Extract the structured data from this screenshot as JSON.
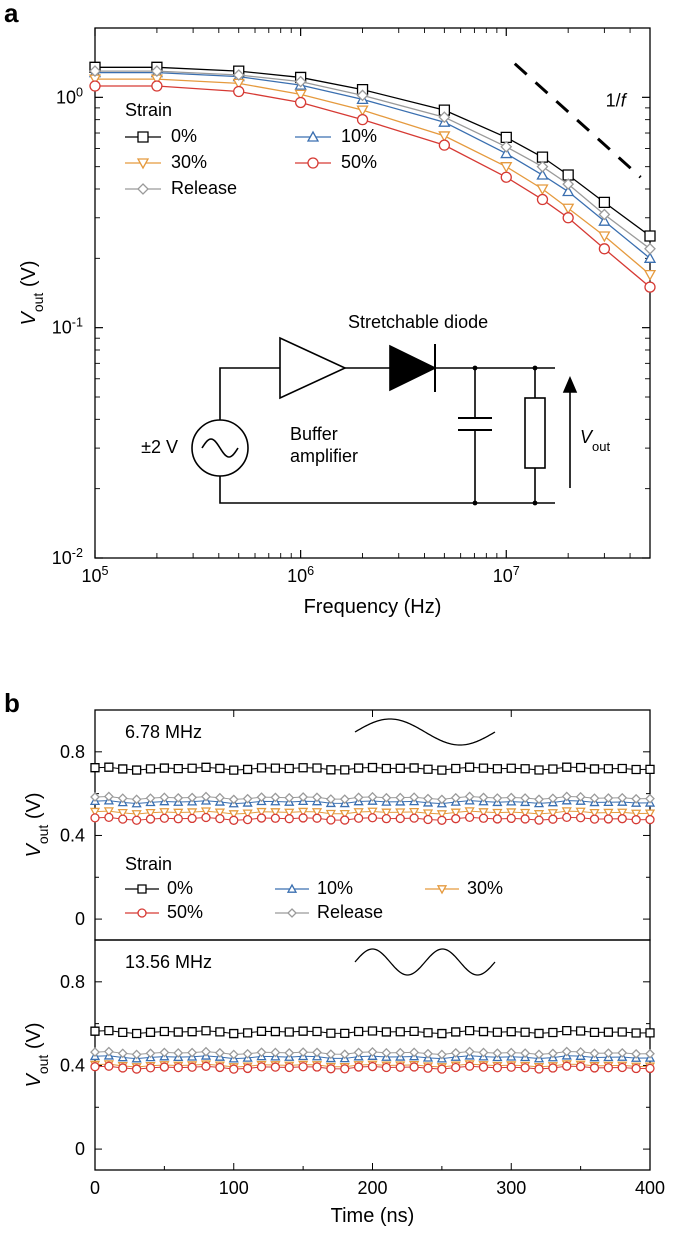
{
  "panelA": {
    "label": "a",
    "type": "line-scatter-loglog",
    "xlabel": "Frequency (Hz)",
    "ylabel": "V_out (V)",
    "ylabel_prefix": "V",
    "ylabel_sub": "out",
    "ylabel_suffix": " (V)",
    "xlim": [
      100000,
      50000000
    ],
    "ylim": [
      0.01,
      2.0
    ],
    "xticks": [
      100000,
      1000000,
      10000000
    ],
    "xtick_labels": [
      "10^5",
      "10^6",
      "10^7"
    ],
    "yticks": [
      0.01,
      0.1,
      1
    ],
    "ytick_labels": [
      "10^-2",
      "10^-1",
      "10^0"
    ],
    "label_fontsize": 20,
    "tick_fontsize": 18,
    "legend_title": "Strain",
    "legend_fontsize": 18,
    "one_over_f_label": "1/f",
    "background_color": "#ffffff",
    "axis_color": "#000000",
    "marker_size": 5,
    "line_width": 1.3,
    "freqs": [
      100000.0,
      200000.0,
      500000.0,
      1000000.0,
      2000000.0,
      5000000.0,
      10000000.0,
      15000000.0,
      20000000.0,
      30000000.0,
      50000000.0
    ],
    "series": [
      {
        "name": "0%",
        "color": "#000000",
        "marker": "square",
        "y": [
          1.35,
          1.35,
          1.3,
          1.22,
          1.08,
          0.88,
          0.67,
          0.55,
          0.46,
          0.35,
          0.25
        ]
      },
      {
        "name": "10%",
        "color": "#3a6fb0",
        "marker": "triangle-up",
        "y": [
          1.28,
          1.28,
          1.23,
          1.13,
          0.98,
          0.78,
          0.57,
          0.46,
          0.39,
          0.29,
          0.2
        ]
      },
      {
        "name": "30%",
        "color": "#e59a3e",
        "marker": "triangle-down",
        "y": [
          1.2,
          1.2,
          1.15,
          1.03,
          0.88,
          0.68,
          0.5,
          0.4,
          0.33,
          0.25,
          0.17
        ]
      },
      {
        "name": "50%",
        "color": "#d63a34",
        "marker": "circle",
        "y": [
          1.12,
          1.12,
          1.06,
          0.95,
          0.8,
          0.62,
          0.45,
          0.36,
          0.3,
          0.22,
          0.15
        ]
      },
      {
        "name": "Release",
        "color": "#9a9a9a",
        "marker": "diamond",
        "y": [
          1.3,
          1.3,
          1.25,
          1.17,
          1.02,
          0.82,
          0.61,
          0.5,
          0.42,
          0.31,
          0.22
        ]
      }
    ],
    "circuit": {
      "source_label": "±2 V",
      "buffer_label_line1": "Buffer",
      "buffer_label_line2": "amplifier",
      "diode_label": "Stretchable diode",
      "vout_prefix": "V",
      "vout_sub": "out",
      "stroke": "#000000",
      "stroke_width": 1.6
    }
  },
  "panelB": {
    "label": "b",
    "type": "line-scatter-linear",
    "xlabel": "Time (ns)",
    "ylabel_prefix": "V",
    "ylabel_sub": "out",
    "ylabel_suffix": " (V)",
    "xlim": [
      0,
      400
    ],
    "ylim": [
      -0.1,
      1.0
    ],
    "xticks": [
      0,
      100,
      200,
      300,
      400
    ],
    "yticks": [
      0,
      0.4,
      0.8
    ],
    "label_fontsize": 20,
    "tick_fontsize": 18,
    "legend_title": "Strain",
    "legend_fontsize": 18,
    "background_color": "#ffffff",
    "axis_color": "#000000",
    "marker_size": 4,
    "line_width": 1.0,
    "time_pts": [
      0,
      10,
      20,
      30,
      40,
      50,
      60,
      70,
      80,
      90,
      100,
      110,
      120,
      130,
      140,
      150,
      160,
      170,
      180,
      190,
      200,
      210,
      220,
      230,
      240,
      250,
      260,
      270,
      280,
      290,
      300,
      310,
      320,
      330,
      340,
      350,
      360,
      370,
      380,
      390,
      400
    ],
    "top": {
      "title": "6.78 MHz",
      "wave_periods": 1,
      "series": [
        {
          "name": "0%",
          "color": "#000000",
          "marker": "square",
          "level": 0.72
        },
        {
          "name": "10%",
          "color": "#3a6fb0",
          "marker": "triangle-up",
          "level": 0.56
        },
        {
          "name": "30%",
          "color": "#e59a3e",
          "marker": "triangle-down",
          "level": 0.51
        },
        {
          "name": "50%",
          "color": "#d63a34",
          "marker": "circle",
          "level": 0.48
        },
        {
          "name": "Release",
          "color": "#9a9a9a",
          "marker": "diamond",
          "level": 0.58
        }
      ]
    },
    "bottom": {
      "title": "13.56 MHz",
      "wave_periods": 2,
      "series": [
        {
          "name": "0%",
          "color": "#000000",
          "marker": "square",
          "level": 0.56
        },
        {
          "name": "10%",
          "color": "#3a6fb0",
          "marker": "triangle-up",
          "level": 0.44
        },
        {
          "name": "30%",
          "color": "#e59a3e",
          "marker": "triangle-down",
          "level": 0.4
        },
        {
          "name": "50%",
          "color": "#d63a34",
          "marker": "circle",
          "level": 0.39
        },
        {
          "name": "Release",
          "color": "#9a9a9a",
          "marker": "diamond",
          "level": 0.46
        }
      ]
    }
  }
}
